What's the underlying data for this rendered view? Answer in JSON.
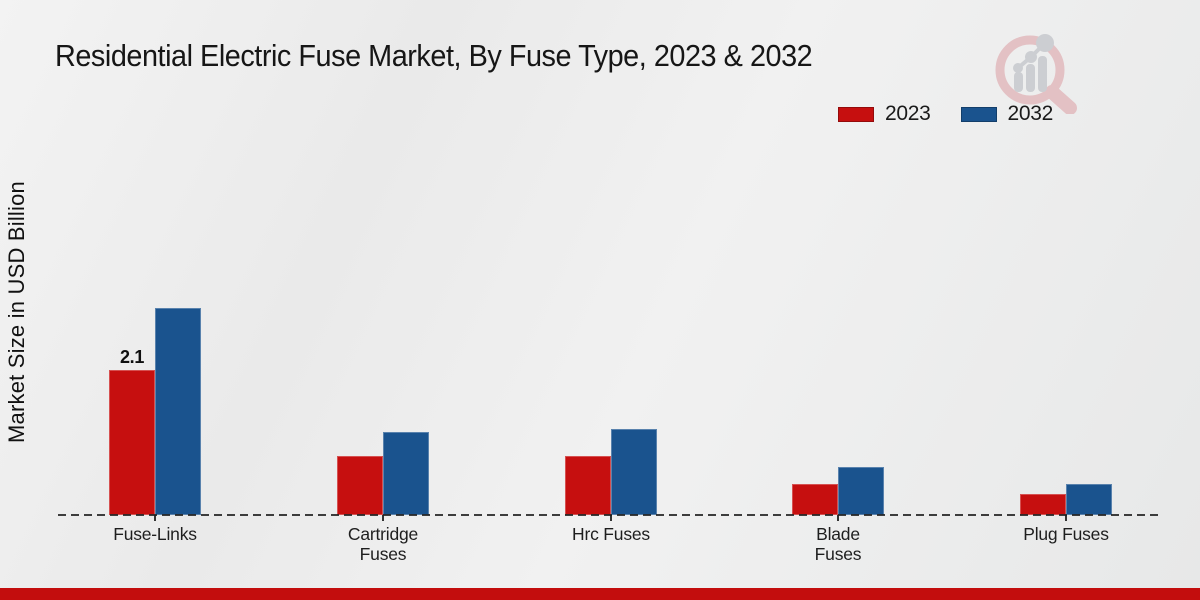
{
  "header": {
    "title": "Residential Electric Fuse Market, By Fuse Type, 2023 & 2032"
  },
  "chart_data": {
    "type": "bar",
    "title": "Residential Electric Fuse Market, By Fuse Type, 2023 & 2032",
    "xlabel": "",
    "ylabel": "Market Size in USD Billion",
    "categories": [
      "Fuse-Links",
      "Cartridge Fuses",
      "Hrc Fuses",
      "Blade Fuses",
      "Plug Fuses"
    ],
    "category_labels": [
      "Fuse-Links",
      "Cartridge\nFuses",
      "Hrc Fuses",
      "Blade\nFuses",
      "Plug Fuses"
    ],
    "series": [
      {
        "name": "2023",
        "color": "#c60f0f",
        "values": [
          2.1,
          0.85,
          0.85,
          0.45,
          0.3
        ]
      },
      {
        "name": "2032",
        "color": "#1a538e",
        "values": [
          3.0,
          1.2,
          1.25,
          0.7,
          0.45
        ]
      }
    ],
    "annotations": [
      {
        "category_index": 0,
        "series_index": 0,
        "text": "2.1"
      }
    ],
    "ylim": [
      0,
      3.3
    ],
    "grid": false,
    "legend_position": "top-right",
    "axis_style": "dashed-baseline-only"
  },
  "theme": {
    "accent_red": "#c60f0f",
    "accent_blue": "#1a538e",
    "footer_bar_color": "#c30d0d",
    "watermark_ring": "#e3bfc2",
    "watermark_glyph": "#cbcdd1",
    "text_color": "#1a1a1a"
  }
}
